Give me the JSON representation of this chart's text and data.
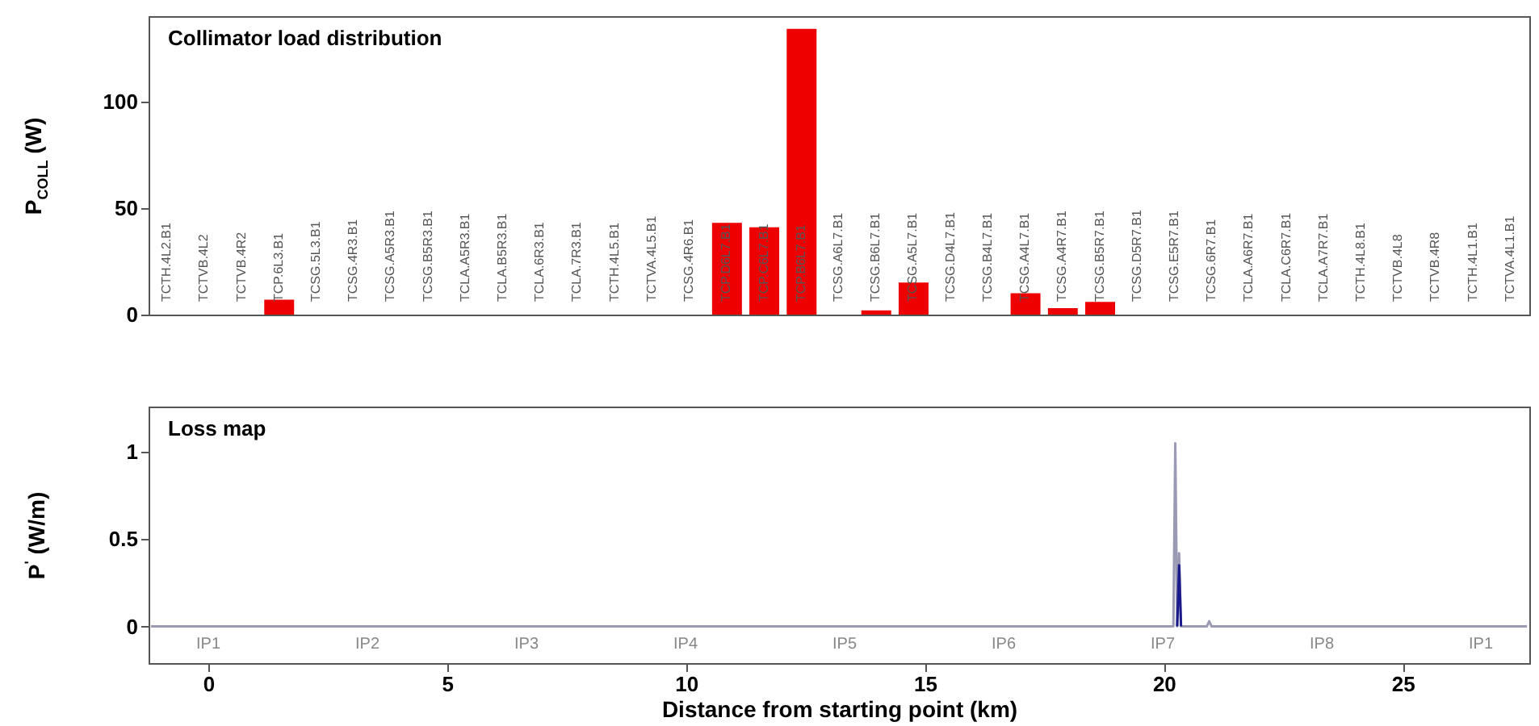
{
  "chart_data": [
    {
      "type": "bar",
      "title": "Collimator load distribution",
      "ylabel": "P$_{COLL}$ (W)",
      "categories": [
        "TCTH.4L2.B1",
        "TCTVB.4L2",
        "TCTVB.4R2",
        "TCP.6L3.B1",
        "TCSG.5L3.B1",
        "TCSG.4R3.B1",
        "TCSG.A5R3.B1",
        "TCSG.B5R3.B1",
        "TCLA.A5R3.B1",
        "TCLA.B5R3.B1",
        "TCLA.6R3.B1",
        "TCLA.7R3.B1",
        "TCTH.4L5.B1",
        "TCTVA.4L5.B1",
        "TCSG.4R6.B1",
        "TCP.D6L7.B1",
        "TCP.C6L7.B1",
        "TCP.B6L7.B1",
        "TCSG.A6L7.B1",
        "TCSG.B6L7.B1",
        "TCSG.A5L7.B1",
        "TCSG.D4L7.B1",
        "TCSG.B4L7.B1",
        "TCSG.A4L7.B1",
        "TCSG.A4R7.B1",
        "TCSG.B5R7.B1",
        "TCSG.D5R7.B1",
        "TCSG.E5R7.B1",
        "TCSG.6R7.B1",
        "TCLA.A6R7.B1",
        "TCLA.C6R7.B1",
        "TCLA.A7R7.B1",
        "TCTH.4L8.B1",
        "TCTVB.4L8",
        "TCTVB.4R8",
        "TCTH.4L1.B1",
        "TCTVA.4L1.B1"
      ],
      "values": [
        0,
        0,
        0,
        7,
        0,
        0,
        0,
        0,
        0,
        0,
        0,
        0,
        0,
        0,
        0,
        43,
        41,
        134,
        0,
        2,
        15,
        0,
        0,
        10,
        3,
        6,
        0,
        0,
        0,
        0,
        0,
        0,
        0,
        0,
        0,
        0,
        0
      ],
      "color": "#ee0000",
      "ylim": [
        0,
        140
      ],
      "yticks": [
        0,
        50,
        100
      ],
      "grid": false
    },
    {
      "type": "line",
      "title": "Loss map",
      "xlabel": "Distance from starting point (km)",
      "ylabel": "P$^{'}$ (W/m)",
      "series": [
        {
          "color": "#9a9ab4",
          "x": [
            -1.2,
            20.2,
            20.24,
            20.28,
            20.32,
            20.36,
            20.9,
            20.95,
            21.0,
            27.6
          ],
          "values": [
            0,
            0,
            1.05,
            0,
            0.42,
            0,
            0,
            0.03,
            0,
            0
          ]
        },
        {
          "color": "#1a1a8c",
          "x": [
            20.28,
            20.32,
            20.36
          ],
          "values": [
            0,
            0.35,
            0
          ]
        }
      ],
      "xlim": [
        -1.25,
        27.65
      ],
      "xticks": [
        0,
        5,
        10,
        15,
        20,
        25
      ],
      "ylim": [
        -0.21,
        1.26
      ],
      "yticks": [
        0,
        0.5,
        1
      ],
      "grid": false,
      "annotations": [
        "IP1",
        "IP2",
        "IP3",
        "IP4",
        "IP5",
        "IP6",
        "IP7",
        "IP8",
        "IP1"
      ]
    }
  ]
}
